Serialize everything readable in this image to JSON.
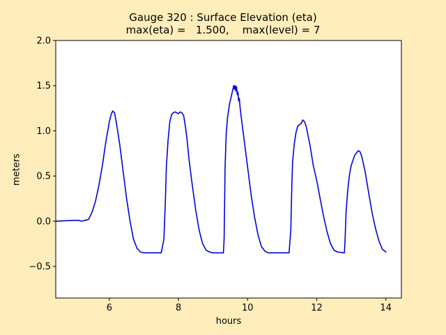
{
  "chart_data": {
    "type": "line",
    "title": "Gauge 320 : Surface Elevation (eta)",
    "subtitle": "max(eta) =   1.500,    max(level) = 7",
    "xlabel": "hours",
    "ylabel": "meters",
    "xlim": [
      4.45,
      14.45
    ],
    "ylim": [
      -0.85,
      2.0
    ],
    "xticks": [
      "6",
      "8",
      "10",
      "12",
      "14"
    ],
    "xtick_values": [
      6,
      8,
      10,
      12,
      14
    ],
    "yticks": [
      "−0.5",
      "0.0",
      "0.5",
      "1.0",
      "1.5",
      "2.0"
    ],
    "ytick_values": [
      -0.5,
      0.0,
      0.5,
      1.0,
      1.5,
      2.0
    ],
    "grid": false,
    "background_color": "#ffeebb",
    "plot_background": "#ffffff",
    "series": [
      {
        "color": "#0000dd",
        "x": [
          4.45,
          5.0,
          5.1,
          5.2,
          5.3,
          5.4,
          5.5,
          5.6,
          5.7,
          5.8,
          5.9,
          6.0,
          6.05,
          6.1,
          6.15,
          6.2,
          6.3,
          6.4,
          6.5,
          6.6,
          6.7,
          6.8,
          6.9,
          7.0,
          7.2,
          7.5,
          7.58,
          7.62,
          7.65,
          7.7,
          7.75,
          7.8,
          7.85,
          7.9,
          8.0,
          8.05,
          8.1,
          8.15,
          8.2,
          8.25,
          8.3,
          8.4,
          8.5,
          8.6,
          8.7,
          8.8,
          8.9,
          9.0,
          9.2,
          9.3,
          9.32,
          9.35,
          9.38,
          9.42,
          9.48,
          9.55,
          9.6,
          9.62,
          9.64,
          9.66,
          9.68,
          9.7,
          9.72,
          9.74,
          9.76,
          9.78,
          9.8,
          9.85,
          9.9,
          10.0,
          10.1,
          10.2,
          10.3,
          10.4,
          10.5,
          10.6,
          10.8,
          11.0,
          11.2,
          11.25,
          11.28,
          11.3,
          11.35,
          11.4,
          11.45,
          11.5,
          11.55,
          11.6,
          11.65,
          11.7,
          11.8,
          11.9,
          12.0,
          12.1,
          12.2,
          12.3,
          12.4,
          12.5,
          12.6,
          12.8,
          12.82,
          12.85,
          12.9,
          12.95,
          13.0,
          13.1,
          13.2,
          13.25,
          13.3,
          13.4,
          13.5,
          13.6,
          13.7,
          13.8,
          13.9,
          14.0
        ],
        "y": [
          0.0,
          0.01,
          0.01,
          0.0,
          0.01,
          0.02,
          0.1,
          0.22,
          0.4,
          0.62,
          0.88,
          1.1,
          1.18,
          1.22,
          1.2,
          1.1,
          0.85,
          0.55,
          0.25,
          0.0,
          -0.2,
          -0.3,
          -0.34,
          -0.35,
          -0.35,
          -0.35,
          -0.2,
          0.2,
          0.6,
          0.9,
          1.1,
          1.18,
          1.2,
          1.21,
          1.19,
          1.21,
          1.2,
          1.17,
          1.05,
          0.9,
          0.7,
          0.4,
          0.12,
          -0.1,
          -0.25,
          -0.32,
          -0.34,
          -0.35,
          -0.35,
          -0.35,
          -0.2,
          0.6,
          0.95,
          1.15,
          1.3,
          1.42,
          1.5,
          1.46,
          1.5,
          1.44,
          1.49,
          1.4,
          1.43,
          1.33,
          1.36,
          1.27,
          1.2,
          1.05,
          0.9,
          0.6,
          0.3,
          0.05,
          -0.15,
          -0.28,
          -0.33,
          -0.35,
          -0.35,
          -0.35,
          -0.35,
          -0.1,
          0.4,
          0.65,
          0.85,
          0.98,
          1.05,
          1.07,
          1.08,
          1.12,
          1.1,
          1.04,
          0.85,
          0.62,
          0.45,
          0.25,
          0.05,
          -0.12,
          -0.25,
          -0.32,
          -0.34,
          -0.35,
          -0.2,
          0.1,
          0.35,
          0.52,
          0.62,
          0.73,
          0.78,
          0.77,
          0.72,
          0.55,
          0.32,
          0.1,
          -0.08,
          -0.22,
          -0.31,
          -0.34
        ]
      }
    ]
  }
}
